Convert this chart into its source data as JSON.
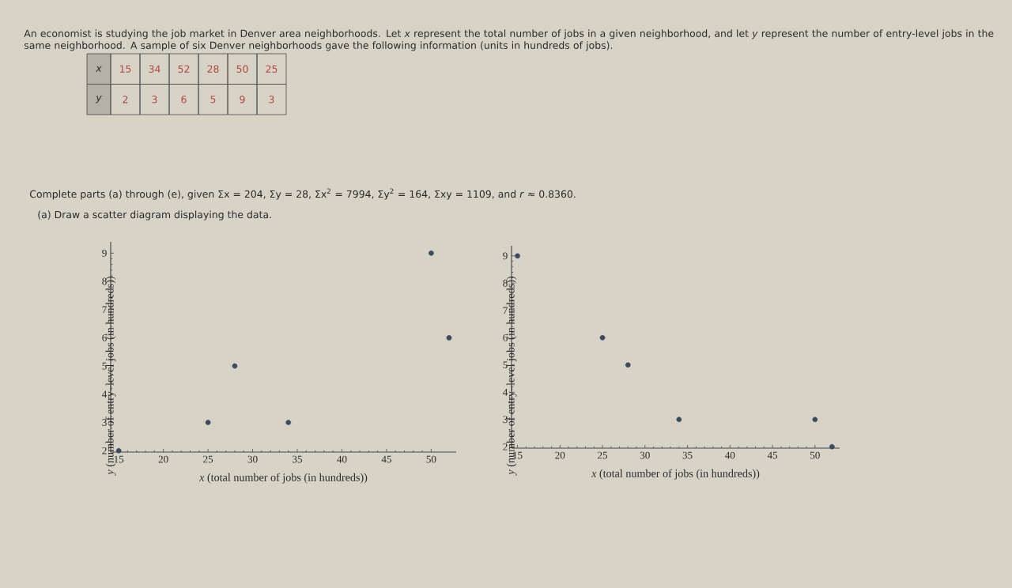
{
  "chart_data": [
    {
      "type": "other",
      "title": "An economist is studying the job market in Denver area neighborhoods. Let *x* represent the total number of jobs in a given neighborhood, and let *y* represent the number of entry-level jobs in the same neighborhood. A sample of six Denver neighborhoods gave the following information (units in hundreds of jobs).",
      "annotations": [
        "x",
        "15",
        "34",
        "52",
        "28",
        "50",
        "25",
        "y",
        "2",
        "3",
        "6",
        "5",
        "9",
        "3",
        "Complete parts (a) through (e), given Σx = 204, Σy = 28, Σx$^{2}$ = 7994, Σy$^{2}$ = 164, Σxy = 1109, and *r* ≈ 0.8360.",
        "(a) Draw a scatter diagram displaying the data."
      ]
    },
    {
      "type": "scatter",
      "x": [
        15,
        34,
        52,
        28,
        50,
        25
      ],
      "values": [
        2,
        3,
        6,
        5,
        9,
        3
      ],
      "color": "#3b4a5e",
      "marker": "circle",
      "xlim": [
        14.1,
        52.8
      ],
      "ylim": [
        1.95,
        9.4
      ],
      "xticks": [
        15,
        20,
        25,
        30,
        35,
        40,
        45,
        50
      ],
      "yticks": [
        2,
        3,
        4,
        5,
        6,
        7,
        8,
        9
      ],
      "xlabel": "*x* (total number of jobs (in hundreds))",
      "ylabel": "*y* (number of entry–level jobs (in hundreds))"
    },
    {
      "type": "scatter",
      "x": [
        15,
        34,
        52,
        28,
        50,
        25
      ],
      "values": [
        9,
        3,
        2,
        5,
        3,
        6
      ],
      "color": "#3b4a5e",
      "marker": "circle",
      "xlim": [
        14.3,
        52.9
      ],
      "ylim": [
        1.95,
        9.37
      ],
      "xticks": [
        15,
        20,
        25,
        30,
        35,
        40,
        45,
        50
      ],
      "yticks": [
        2,
        3,
        4,
        5,
        6,
        7,
        8,
        9
      ],
      "xlabel": "*x* (total number of jobs (in hundreds))",
      "ylabel": "*y* (number of entry–level jobs (in hundreds))"
    }
  ]
}
